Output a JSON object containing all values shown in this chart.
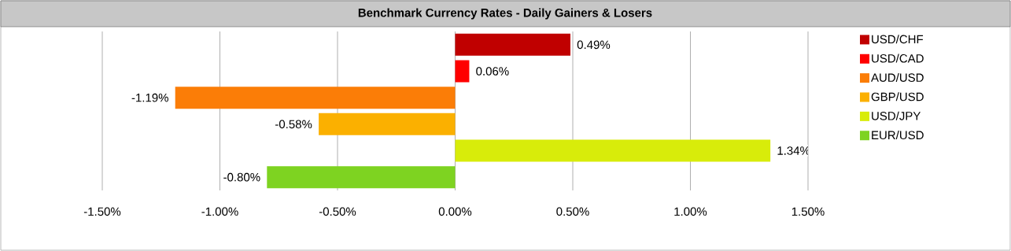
{
  "chart_data": {
    "type": "bar",
    "orientation": "horizontal",
    "title": "Benchmark Currency Rates - Daily Gainers & Losers",
    "categories": [
      null,
      null,
      null,
      null,
      null,
      null
    ],
    "series": [
      {
        "name": "USD/CHF",
        "color": "#c00000",
        "values": [
          0.49,
          null,
          null,
          null,
          null,
          null
        ],
        "value_labels": [
          "0.49%",
          null,
          null,
          null,
          null,
          null
        ]
      },
      {
        "name": "USD/CAD",
        "color": "#ff0000",
        "values": [
          null,
          0.06,
          null,
          null,
          null,
          null
        ],
        "value_labels": [
          null,
          "0.06%",
          null,
          null,
          null,
          null
        ]
      },
      {
        "name": "AUD/USD",
        "color": "#fb7d07",
        "values": [
          null,
          null,
          -1.19,
          null,
          null,
          null
        ],
        "value_labels": [
          null,
          null,
          "-1.19%",
          null,
          null,
          null
        ]
      },
      {
        "name": "GBP/USD",
        "color": "#fbb000",
        "values": [
          null,
          null,
          null,
          -0.58,
          null,
          null
        ],
        "value_labels": [
          null,
          null,
          null,
          "-0.58%",
          null,
          null
        ]
      },
      {
        "name": "USD/JPY",
        "color": "#d8ec0a",
        "values": [
          null,
          null,
          null,
          null,
          1.34,
          null
        ],
        "value_labels": [
          null,
          null,
          null,
          null,
          "1.34%",
          null
        ]
      },
      {
        "name": "EUR/USD",
        "color": "#7ed321",
        "values": [
          null,
          null,
          null,
          null,
          null,
          -0.8
        ],
        "value_labels": [
          null,
          null,
          null,
          null,
          null,
          "-0.80%"
        ]
      }
    ],
    "xlim": [
      -1.5,
      1.5
    ],
    "xticks": [
      {
        "value": -1.5,
        "label": "-1.50%"
      },
      {
        "value": -1.0,
        "label": "-1.00%"
      },
      {
        "value": -0.5,
        "label": "-0.50%"
      },
      {
        "value": 0.0,
        "label": "0.00%"
      },
      {
        "value": 0.5,
        "label": "0.50%"
      },
      {
        "value": 1.0,
        "label": "1.00%"
      },
      {
        "value": 1.5,
        "label": "1.50%"
      }
    ],
    "grid": "x",
    "legend": "right",
    "tick_labels": "x"
  }
}
